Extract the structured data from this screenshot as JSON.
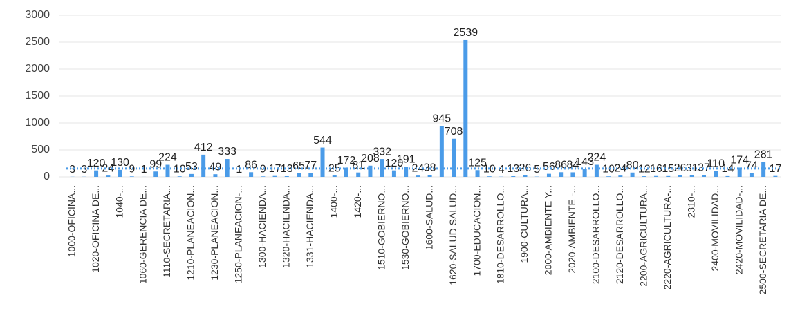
{
  "chart_data": {
    "type": "bar",
    "categories": [
      "1000-OFICINA...",
      null,
      "1020-OFICINA DE...",
      null,
      "1040-...",
      null,
      "1060-GERENCIA DE...",
      null,
      "1110-SECRETARIA...",
      null,
      "1210-PLANEACION...",
      null,
      "1230-PLANEACION...",
      null,
      "1250-PLANEACION-...",
      null,
      "1300-HACIENDA...",
      null,
      "1320-HACIENDA...",
      null,
      "1331-HACIENDA...",
      null,
      "1400-...",
      null,
      "1420-...",
      null,
      "1510-GOBIERNO...",
      null,
      "1530-GOBIERNO...",
      null,
      "1600-SALUD...",
      null,
      "1620-SALUD SALUD...",
      null,
      "1700-EDUCACION...",
      null,
      "1810-DESARROLLO...",
      null,
      "1900-CULTURA...",
      null,
      "2000-AMBIENTE Y...",
      null,
      "2020-AMBIENTE -...",
      null,
      "2100-DESARROLLO...",
      null,
      "2120-DESARROLLO...",
      null,
      "2200-AGRICULTURA...",
      null,
      "2220-AGRICULTURA-...",
      null,
      "2310-...",
      null,
      "2400-MOVILIDAD...",
      null,
      "2420-MOVILIDAD-...",
      null,
      "2500-SECRETARIA DE...",
      null
    ],
    "values": [
      3,
      3,
      120,
      24,
      130,
      9,
      1,
      99,
      224,
      10,
      53,
      412,
      49,
      333,
      1,
      86,
      9,
      17,
      13,
      65,
      77,
      544,
      25,
      172,
      81,
      208,
      332,
      120,
      191,
      24,
      38,
      945,
      708,
      2539,
      125,
      10,
      4,
      13,
      26,
      5,
      56,
      86,
      84,
      143,
      224,
      10,
      24,
      80,
      12,
      16,
      15,
      26,
      31,
      37,
      110,
      14,
      174,
      74,
      281,
      17
    ],
    "color": "#4a9be8",
    "ylim": [
      0,
      3000
    ],
    "yticks": [
      0,
      500,
      1000,
      1500,
      2000,
      2500,
      3000
    ],
    "grid": true,
    "average_line": true
  }
}
